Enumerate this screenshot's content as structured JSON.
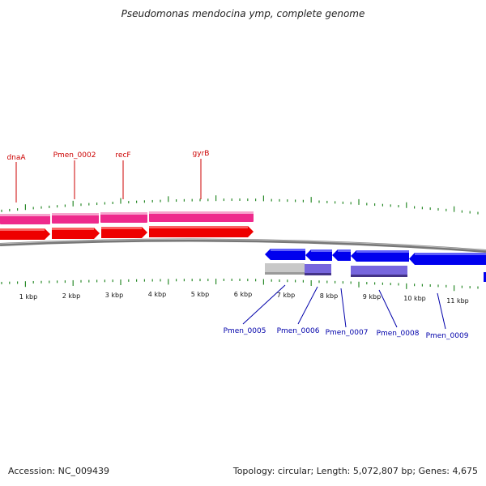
{
  "title": "Pseudomonas mendocina ymp, complete genome",
  "accession_label": "Accession: NC_009439",
  "summary_label": "Topology: circular; Length: 5,072,807 bp; Genes: 4,675",
  "colors": {
    "forward_arrow": "#ee0000",
    "forward_band": "#ee2a8c",
    "reverse_arrow": "#0000ee",
    "reverse_band": "#7766dd",
    "grey_band": "#c8c8c8",
    "tick": "#2a8a2a",
    "backbone": "#777777"
  },
  "forward_genes": [
    {
      "name": "dnaA"
    },
    {
      "name": "Pmen_0002"
    },
    {
      "name": "recF"
    },
    {
      "name": "gyrB"
    }
  ],
  "reverse_genes": [
    {
      "name": "Pmen_0005"
    },
    {
      "name": "Pmen_0006"
    },
    {
      "name": "Pmen_0007"
    },
    {
      "name": "Pmen_0008"
    },
    {
      "name": "Pmen_0009"
    }
  ],
  "kbp_labels": [
    "1 kbp",
    "2 kbp",
    "3 kbp",
    "4 kbp",
    "5 kbp",
    "6 kbp",
    "7 kbp",
    "8 kbp",
    "9 kbp",
    "10 kbp",
    "11 kbp"
  ]
}
